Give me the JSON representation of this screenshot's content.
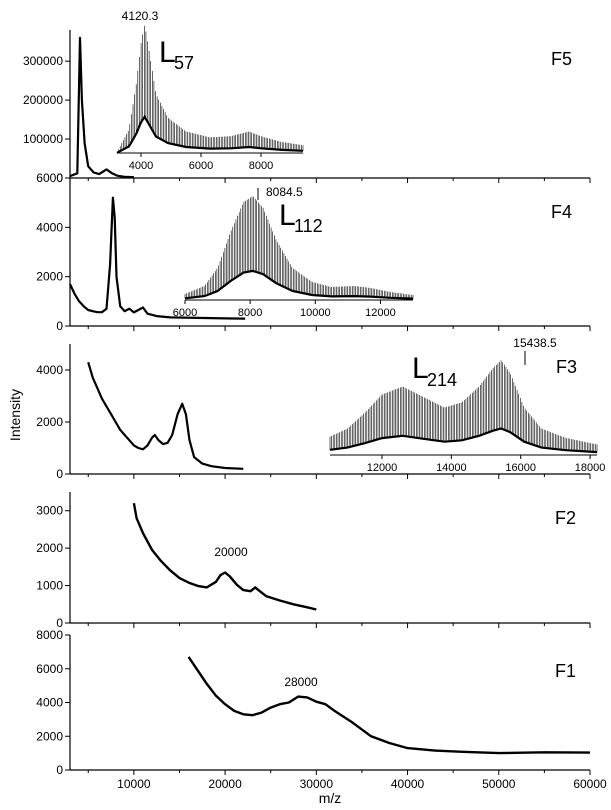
{
  "chart_data": {
    "type": "line",
    "xlabel": "m/z",
    "ylabel": "Intensity",
    "panels": [
      {
        "name": "F5",
        "xlim": [
          3000,
          60000
        ],
        "ylim": [
          0,
          380000
        ],
        "yticks": [
          0,
          100000,
          200000,
          300000
        ],
        "points": [
          [
            3000,
            5000
          ],
          [
            3800,
            12000
          ],
          [
            4100,
            360000
          ],
          [
            4300,
            200000
          ],
          [
            4600,
            90000
          ],
          [
            5000,
            30000
          ],
          [
            5600,
            14000
          ],
          [
            6200,
            10000
          ],
          [
            7000,
            22000
          ],
          [
            7600,
            12000
          ],
          [
            8200,
            6000
          ],
          [
            9000,
            3000
          ],
          [
            10000,
            2000
          ]
        ],
        "inset": {
          "xlim": [
            3200,
            9400
          ],
          "xticks": [
            4000,
            6000,
            8000
          ],
          "points": [
            [
              3200,
              200
            ],
            [
              3600,
              6000
            ],
            [
              3850,
              18000
            ],
            [
              4000,
              28000
            ],
            [
              4120,
              33000
            ],
            [
              4250,
              27000
            ],
            [
              4500,
              15000
            ],
            [
              4900,
              9000
            ],
            [
              5500,
              5500
            ],
            [
              6300,
              4000
            ],
            [
              7000,
              4300
            ],
            [
              7600,
              5500
            ],
            [
              8000,
              4300
            ],
            [
              8700,
              2800
            ],
            [
              9400,
              2000
            ]
          ],
          "ymax": 34000
        },
        "annotations": [
          {
            "text": "4120.3",
            "x": 4120.3
          }
        ],
        "series_label": {
          "L": "L",
          "sub": "57"
        }
      },
      {
        "name": "F4",
        "xlim": [
          3000,
          60000
        ],
        "ylim": [
          0,
          6000
        ],
        "yticks": [
          0,
          2000,
          4000,
          6000
        ],
        "points": [
          [
            3000,
            1700
          ],
          [
            3500,
            1300
          ],
          [
            4000,
            1000
          ],
          [
            4500,
            800
          ],
          [
            5000,
            650
          ],
          [
            5500,
            600
          ],
          [
            6000,
            560
          ],
          [
            6500,
            560
          ],
          [
            7000,
            700
          ],
          [
            7400,
            2500
          ],
          [
            7700,
            5200
          ],
          [
            7900,
            4400
          ],
          [
            8100,
            2000
          ],
          [
            8500,
            800
          ],
          [
            9000,
            600
          ],
          [
            9500,
            700
          ],
          [
            10000,
            550
          ],
          [
            11000,
            750
          ],
          [
            11500,
            500
          ],
          [
            12500,
            400
          ],
          [
            14000,
            350
          ],
          [
            17000,
            330
          ],
          [
            20000,
            310
          ],
          [
            22000,
            300
          ],
          [
            22200,
            300
          ]
        ],
        "inset": {
          "xlim": [
            6000,
            13000
          ],
          "xticks": [
            6000,
            8000,
            10000,
            12000
          ],
          "points": [
            [
              6000,
              300
            ],
            [
              6600,
              700
            ],
            [
              7000,
              1600
            ],
            [
              7400,
              3400
            ],
            [
              7800,
              4900
            ],
            [
              8084,
              5200
            ],
            [
              8400,
              4600
            ],
            [
              8800,
              3000
            ],
            [
              9300,
              1600
            ],
            [
              9900,
              900
            ],
            [
              10500,
              650
            ],
            [
              11200,
              700
            ],
            [
              11700,
              600
            ],
            [
              12300,
              400
            ],
            [
              13000,
              250
            ]
          ],
          "ymax": 5400
        },
        "annotations": [
          {
            "text": "8084.5",
            "x": 8084.5
          }
        ],
        "series_label": {
          "L": "L",
          "sub": "112"
        }
      },
      {
        "name": "F3",
        "xlim": [
          3000,
          60000
        ],
        "ylim": [
          0,
          5000
        ],
        "yticks": [
          0,
          2000,
          4000
        ],
        "points": [
          [
            5000,
            4300
          ],
          [
            5500,
            3700
          ],
          [
            6000,
            3300
          ],
          [
            6500,
            2900
          ],
          [
            7000,
            2600
          ],
          [
            7500,
            2300
          ],
          [
            8000,
            2000
          ],
          [
            8500,
            1700
          ],
          [
            9000,
            1500
          ],
          [
            9500,
            1300
          ],
          [
            10000,
            1100
          ],
          [
            10500,
            1000
          ],
          [
            11000,
            950
          ],
          [
            11500,
            1100
          ],
          [
            12000,
            1400
          ],
          [
            12300,
            1500
          ],
          [
            12700,
            1300
          ],
          [
            13200,
            1150
          ],
          [
            13700,
            1200
          ],
          [
            14200,
            1500
          ],
          [
            14800,
            2300
          ],
          [
            15300,
            2700
          ],
          [
            15700,
            2300
          ],
          [
            16100,
            1300
          ],
          [
            16600,
            650
          ],
          [
            17500,
            400
          ],
          [
            18500,
            300
          ],
          [
            20000,
            230
          ],
          [
            22000,
            200
          ]
        ],
        "inset": {
          "xlim": [
            10500,
            18200
          ],
          "xticks": [
            12000,
            14000,
            16000,
            18000
          ],
          "points": [
            [
              10500,
              700
            ],
            [
              11000,
              1000
            ],
            [
              11500,
              1600
            ],
            [
              12000,
              2300
            ],
            [
              12600,
              2600
            ],
            [
              13200,
              2200
            ],
            [
              13800,
              1800
            ],
            [
              14300,
              2000
            ],
            [
              14800,
              2600
            ],
            [
              15200,
              3300
            ],
            [
              15438,
              3600
            ],
            [
              15700,
              3100
            ],
            [
              16100,
              1800
            ],
            [
              16600,
              1000
            ],
            [
              17300,
              650
            ],
            [
              18200,
              400
            ]
          ],
          "ymax": 3800
        },
        "annotations": [
          {
            "text": "15438.5",
            "x": 15438.5
          }
        ],
        "series_label": {
          "L": "L",
          "sub": "214"
        }
      },
      {
        "name": "F2",
        "xlim": [
          3000,
          60000
        ],
        "ylim": [
          0,
          3500
        ],
        "yticks": [
          0,
          1000,
          2000,
          3000
        ],
        "points": [
          [
            10000,
            3200
          ],
          [
            10300,
            2800
          ],
          [
            11000,
            2400
          ],
          [
            12000,
            1950
          ],
          [
            13000,
            1650
          ],
          [
            14000,
            1400
          ],
          [
            15000,
            1200
          ],
          [
            16000,
            1080
          ],
          [
            17000,
            990
          ],
          [
            18000,
            950
          ],
          [
            19000,
            1100
          ],
          [
            19500,
            1280
          ],
          [
            20000,
            1350
          ],
          [
            20500,
            1250
          ],
          [
            21300,
            1020
          ],
          [
            22000,
            880
          ],
          [
            22800,
            850
          ],
          [
            23300,
            950
          ],
          [
            23800,
            850
          ],
          [
            24500,
            720
          ],
          [
            26000,
            600
          ],
          [
            27500,
            500
          ],
          [
            29000,
            420
          ],
          [
            30000,
            360
          ]
        ],
        "annotations": [
          {
            "text": "20000",
            "x": 20000
          }
        ]
      },
      {
        "name": "F1",
        "xlim": [
          3000,
          60000
        ],
        "ylim": [
          0,
          8000
        ],
        "yticks": [
          0,
          2000,
          4000,
          6000,
          8000
        ],
        "xticks": [
          10000,
          20000,
          30000,
          40000,
          50000,
          60000
        ],
        "points": [
          [
            16000,
            6700
          ],
          [
            17000,
            5900
          ],
          [
            18000,
            5100
          ],
          [
            19000,
            4400
          ],
          [
            20000,
            3900
          ],
          [
            21000,
            3500
          ],
          [
            22000,
            3300
          ],
          [
            23000,
            3250
          ],
          [
            24000,
            3400
          ],
          [
            25000,
            3700
          ],
          [
            26000,
            3900
          ],
          [
            27000,
            4000
          ],
          [
            28000,
            4350
          ],
          [
            29000,
            4300
          ],
          [
            30000,
            4050
          ],
          [
            31000,
            3900
          ],
          [
            32000,
            3500
          ],
          [
            34000,
            2800
          ],
          [
            36000,
            2000
          ],
          [
            38000,
            1600
          ],
          [
            40000,
            1300
          ],
          [
            43000,
            1150
          ],
          [
            46000,
            1080
          ],
          [
            50000,
            1000
          ],
          [
            55000,
            1050
          ],
          [
            60000,
            1030
          ]
        ],
        "annotations": [
          {
            "text": "28000",
            "x": 28000
          }
        ]
      }
    ]
  }
}
